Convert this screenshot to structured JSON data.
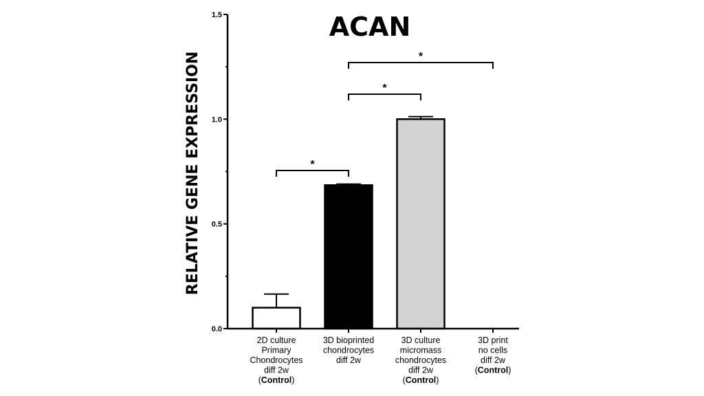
{
  "chart_data": {
    "type": "bar",
    "title": "ACAN",
    "xlabel": "",
    "ylabel": "RELATIVE GENE EXPRESSION",
    "ylim": [
      0,
      1.5
    ],
    "yticks": [
      "0.0",
      "0.5",
      "1.0",
      "1.5"
    ],
    "minor_yticks": [
      0.25,
      0.75,
      1.25
    ],
    "grid": false,
    "legend": null,
    "categories": [
      [
        "2D culture",
        "Primary",
        "Chondrocytes",
        "diff 2w",
        "(Control)"
      ],
      [
        "3D bioprinted",
        "chondrocytes",
        "diff 2w"
      ],
      [
        "3D culture",
        "micromass",
        "chondrocytes",
        "diff 2w",
        "(Control)"
      ],
      [
        "3D print",
        "no cells",
        "diff 2w",
        "(Control)"
      ]
    ],
    "values": [
      0.1,
      0.685,
      1.0,
      0.0
    ],
    "error_upper": [
      0.165,
      0.69,
      1.012,
      0.0
    ],
    "bar_colors": [
      "#ffffff",
      "#000000",
      "#d3d3d3",
      "#ffffff"
    ],
    "significance": [
      {
        "from": 0,
        "to": 1,
        "label": "*"
      },
      {
        "from": 1,
        "to": 2,
        "label": "*"
      },
      {
        "from": 1,
        "to": 3,
        "label": "*"
      }
    ]
  }
}
